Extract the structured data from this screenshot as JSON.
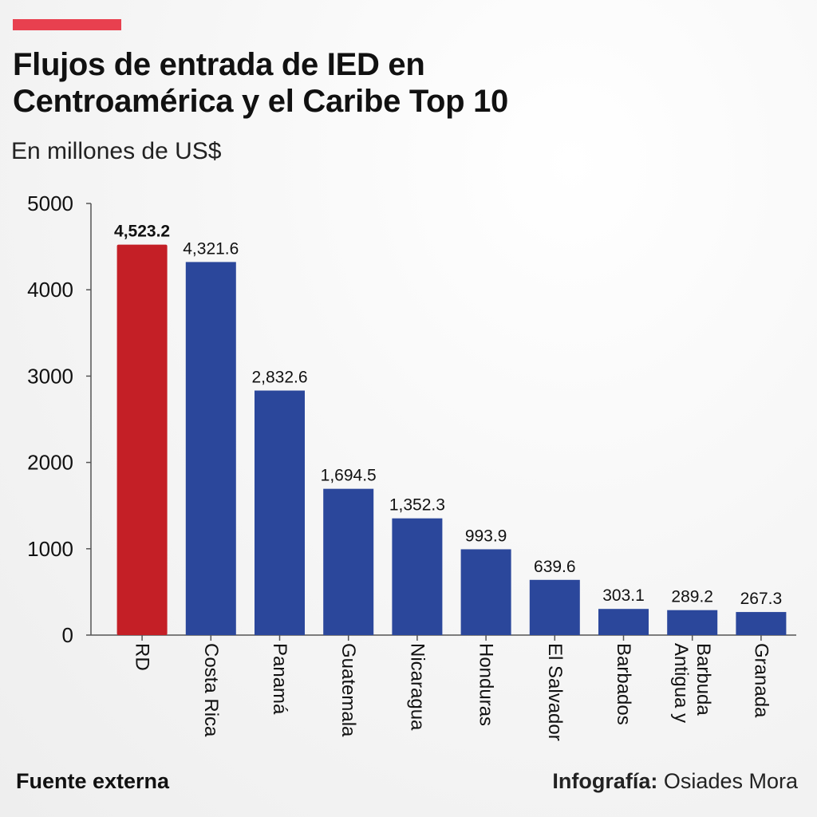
{
  "title_lines": [
    "Flujos de entrada de IED en",
    "Centroamérica y el Caribe Top 10"
  ],
  "subtitle": "En millones de US$",
  "colors": {
    "accent": "#e8404f",
    "highlight_bar": "#c41f26",
    "bar": "#2b479b",
    "axis": "#555555"
  },
  "chart_data": {
    "type": "bar",
    "title": "Flujos de entrada de IED en Centroamérica y el Caribe Top 10",
    "ylabel": "En millones de US$",
    "xlabel": "",
    "ylim": [
      0,
      5000
    ],
    "yticks": [
      0,
      1000,
      2000,
      3000,
      4000,
      5000
    ],
    "categories": [
      [
        "RD"
      ],
      [
        "Costa Rica"
      ],
      [
        "Panamá"
      ],
      [
        "Guatemala"
      ],
      [
        "Nicaragua"
      ],
      [
        "Honduras"
      ],
      [
        "El Salvador"
      ],
      [
        "Barbados"
      ],
      [
        "Antigua y",
        "Barbuda"
      ],
      [
        "Granada"
      ]
    ],
    "values": [
      4523.2,
      4321.6,
      2832.6,
      1694.5,
      1352.3,
      993.9,
      639.6,
      303.1,
      289.2,
      267.3
    ],
    "value_labels": [
      "4,523.2",
      "4,321.6",
      "2,832.6",
      "1,694.5",
      "1,352.3",
      "993.9",
      "639.6",
      "303.1",
      "289.2",
      "267.3"
    ],
    "highlight_index": 0,
    "grid": false,
    "legend": "none"
  },
  "footer": {
    "source": "Fuente externa",
    "credit_label": "Infografía:",
    "credit_name": "Osiades Mora"
  }
}
